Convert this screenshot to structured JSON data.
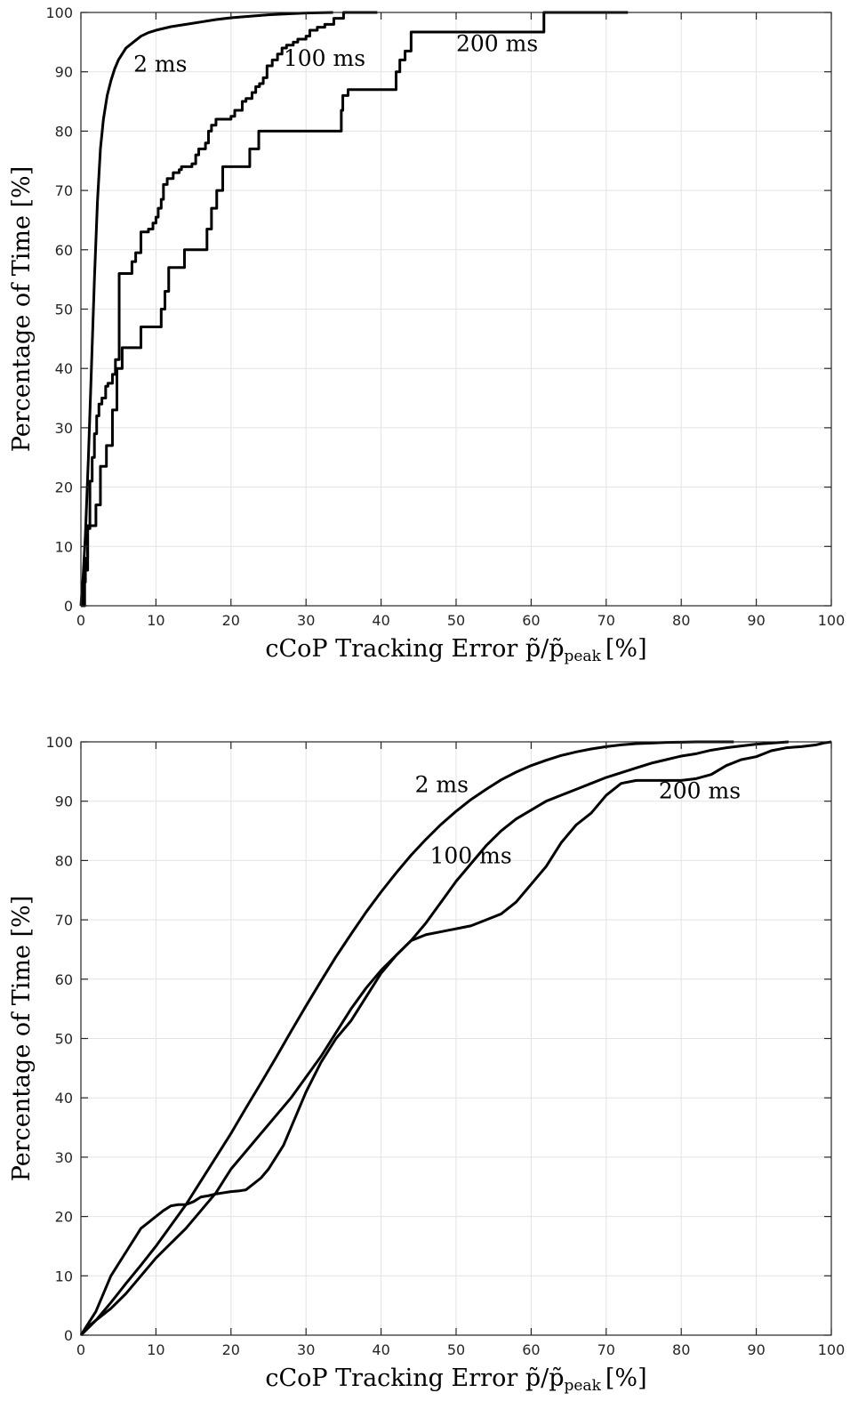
{
  "chart_data": [
    {
      "type": "line",
      "xlabel": "cCoP Tracking Error p̃/p̃",
      "xlabel_sub": "peak",
      "xlabel_unit": "[%]",
      "ylabel": "Percentage of Time [%]",
      "xlim": [
        0,
        100
      ],
      "ylim": [
        0,
        100
      ],
      "xticks": [
        "0",
        "10",
        "20",
        "30",
        "40",
        "50",
        "60",
        "70",
        "80",
        "90",
        "100"
      ],
      "yticks": [
        "0",
        "10",
        "20",
        "30",
        "40",
        "50",
        "60",
        "70",
        "80",
        "90",
        "100"
      ],
      "grid": true,
      "annotations": [
        {
          "text": "2 ms",
          "x": 7,
          "y": 90
        },
        {
          "text": "100 ms",
          "x": 27,
          "y": 91
        },
        {
          "text": "200 ms",
          "x": 50,
          "y": 93.5
        }
      ],
      "series": [
        {
          "label": "2 ms",
          "step": false,
          "x": [
            0,
            0.3,
            0.6,
            1.0,
            1.4,
            1.8,
            2.2,
            2.6,
            3.0,
            3.5,
            4.0,
            4.5,
            5.0,
            5.5,
            6.0,
            7.0,
            8.0,
            9.0,
            10.0,
            12.0,
            14.0,
            16.0,
            18.0,
            20.0,
            22.0,
            25.0,
            28.0,
            30.0,
            33.6
          ],
          "y": [
            0,
            5,
            12,
            25,
            40,
            55,
            68,
            77,
            82,
            86,
            88.5,
            90.5,
            92,
            93,
            94,
            95,
            96,
            96.6,
            97,
            97.6,
            98,
            98.4,
            98.8,
            99.1,
            99.3,
            99.6,
            99.8,
            99.9,
            100
          ]
        },
        {
          "label": "100 ms",
          "step": true,
          "x": [
            0,
            0.3,
            0.6,
            0.9,
            1.2,
            1.5,
            1.8,
            2.1,
            2.4,
            2.8,
            3.3,
            3.6,
            4.2,
            4.6,
            5.1,
            6.8,
            7.3,
            8.0,
            9.0,
            9.6,
            10.0,
            10.3,
            10.7,
            11.0,
            11.5,
            12.3,
            13.1,
            13.4,
            14.8,
            15.3,
            15.7,
            16.6,
            17.0,
            17.4,
            18.0,
            20.0,
            20.5,
            21.5,
            22.0,
            22.8,
            23.3,
            23.8,
            24.3,
            24.8,
            25.5,
            26.2,
            26.8,
            27.4,
            28.3,
            28.9,
            30.0,
            30.5,
            31.5,
            32.5,
            33.7,
            35.0,
            36.9,
            39.5
          ],
          "y": [
            0,
            4,
            8,
            13,
            21,
            25,
            29,
            32,
            34,
            35,
            37,
            37.5,
            39,
            41.5,
            56,
            58,
            59.5,
            63,
            63.5,
            64.5,
            65.5,
            67,
            68.5,
            71,
            72,
            73,
            73.5,
            74,
            74.5,
            76,
            77,
            78,
            80,
            81,
            82,
            82.5,
            83.5,
            85,
            85.5,
            86.5,
            87.5,
            88,
            89,
            91,
            92,
            93,
            94,
            94.5,
            95,
            95.5,
            96,
            97,
            97.5,
            98,
            99,
            100,
            100,
            100
          ]
        },
        {
          "label": "200 ms",
          "step": true,
          "x": [
            0,
            0.5,
            0.9,
            2.0,
            2.6,
            3.4,
            4.2,
            4.8,
            5.5,
            8.0,
            10.7,
            11.2,
            11.7,
            13.8,
            16.8,
            17.4,
            18.1,
            18.9,
            22.5,
            23.7,
            34.7,
            34.9,
            35.6,
            42.0,
            42.5,
            43.2,
            44.0,
            46.0,
            50.0,
            61.7,
            72.9
          ],
          "y": [
            0,
            6,
            13.5,
            17,
            23.5,
            27,
            33,
            40,
            43.5,
            47,
            50,
            53,
            57,
            60,
            63.5,
            67,
            70,
            74,
            77,
            80,
            83.5,
            86,
            87,
            90,
            92,
            93.5,
            96.7,
            96.7,
            96.7,
            100,
            100
          ]
        }
      ]
    },
    {
      "type": "line",
      "xlabel": "cCoP Tracking Error p̃/p̃",
      "xlabel_sub": "peak",
      "xlabel_unit": "[%]",
      "ylabel": "Percentage of Time [%]",
      "xlim": [
        0,
        100
      ],
      "ylim": [
        0,
        100
      ],
      "xticks": [
        "0",
        "10",
        "20",
        "30",
        "40",
        "50",
        "60",
        "70",
        "80",
        "90",
        "100"
      ],
      "yticks": [
        "0",
        "10",
        "20",
        "30",
        "40",
        "50",
        "60",
        "70",
        "80",
        "90",
        "100"
      ],
      "grid": true,
      "annotations": [
        {
          "text": "2 ms",
          "x": 44.5,
          "y": 91.5
        },
        {
          "text": "100 ms",
          "x": 46.5,
          "y": 79.5
        },
        {
          "text": "200 ms",
          "x": 77,
          "y": 90.5
        }
      ],
      "series": [
        {
          "label": "2 ms",
          "step": false,
          "x": [
            0,
            2,
            4,
            6,
            8,
            10,
            12,
            14,
            16,
            18,
            20,
            22,
            24,
            26,
            28,
            30,
            32,
            34,
            36,
            38,
            40,
            42,
            44,
            46,
            48,
            50,
            52,
            54,
            56,
            58,
            60,
            62,
            64,
            66,
            68,
            70,
            72,
            74,
            76,
            78,
            80,
            82,
            84,
            86,
            87
          ],
          "y": [
            0,
            2.5,
            5.5,
            8.7,
            11.8,
            15,
            18.5,
            22,
            26,
            30,
            34,
            38.3,
            42.5,
            46.8,
            51.2,
            55.5,
            59.7,
            63.8,
            67.6,
            71.3,
            74.7,
            77.9,
            80.9,
            83.6,
            86.1,
            88.3,
            90.3,
            92,
            93.6,
            94.9,
            96,
            96.9,
            97.7,
            98.3,
            98.8,
            99.2,
            99.5,
            99.7,
            99.8,
            99.9,
            99.95,
            100,
            100,
            100,
            100
          ]
        },
        {
          "label": "100 ms",
          "step": false,
          "x": [
            0,
            1,
            2,
            4,
            6,
            8,
            10,
            12,
            14,
            16,
            18,
            20,
            22,
            24,
            26,
            28,
            30,
            32,
            34,
            36,
            38,
            40,
            42,
            44,
            46,
            48,
            50,
            52,
            54,
            56,
            58,
            60,
            62,
            64,
            66,
            68,
            70,
            72,
            74,
            76,
            78,
            80,
            82,
            84,
            86,
            88,
            90,
            92,
            94.3
          ],
          "y": [
            0,
            1.5,
            2.5,
            4.5,
            7,
            10,
            13,
            15.5,
            18,
            21,
            24,
            28,
            31,
            34,
            37,
            40,
            43.5,
            47,
            51,
            55,
            58.5,
            61.5,
            64,
            66.5,
            69.5,
            73,
            76.5,
            79.5,
            82.5,
            85,
            87,
            88.5,
            90,
            91,
            92,
            93,
            94,
            94.8,
            95.6,
            96.4,
            97,
            97.6,
            98,
            98.6,
            99,
            99.3,
            99.6,
            99.8,
            100
          ]
        },
        {
          "label": "200 ms",
          "step": false,
          "x": [
            0,
            1,
            2,
            3,
            4,
            5,
            6,
            7,
            8,
            9,
            10,
            11,
            12,
            13,
            14,
            15,
            16,
            17,
            18,
            19,
            20,
            21,
            22,
            23,
            24,
            25,
            26,
            27,
            28,
            29,
            30,
            32,
            34,
            36,
            38,
            40,
            42,
            44,
            46,
            48,
            50,
            52,
            54,
            56,
            58,
            60,
            62,
            64,
            66,
            68,
            70,
            72,
            74,
            76,
            78,
            80,
            82,
            84,
            86,
            88,
            90,
            92,
            94,
            96,
            98,
            99,
            100
          ],
          "y": [
            0,
            2,
            4,
            7,
            10,
            12,
            14,
            16,
            18,
            19,
            20,
            21,
            21.8,
            22,
            22,
            22.5,
            23.3,
            23.5,
            23.8,
            24,
            24.2,
            24.3,
            24.5,
            25.5,
            26.5,
            28,
            30,
            32,
            35,
            38,
            41,
            46,
            50,
            53,
            57,
            61,
            64,
            66.5,
            67.5,
            68,
            68.5,
            69,
            70,
            71,
            73,
            76,
            79,
            83,
            86,
            88,
            91,
            93,
            93.5,
            93.5,
            93.5,
            93.5,
            93.8,
            94.5,
            96,
            97,
            97.5,
            98.5,
            99,
            99.2,
            99.5,
            99.8,
            100
          ]
        }
      ]
    }
  ]
}
